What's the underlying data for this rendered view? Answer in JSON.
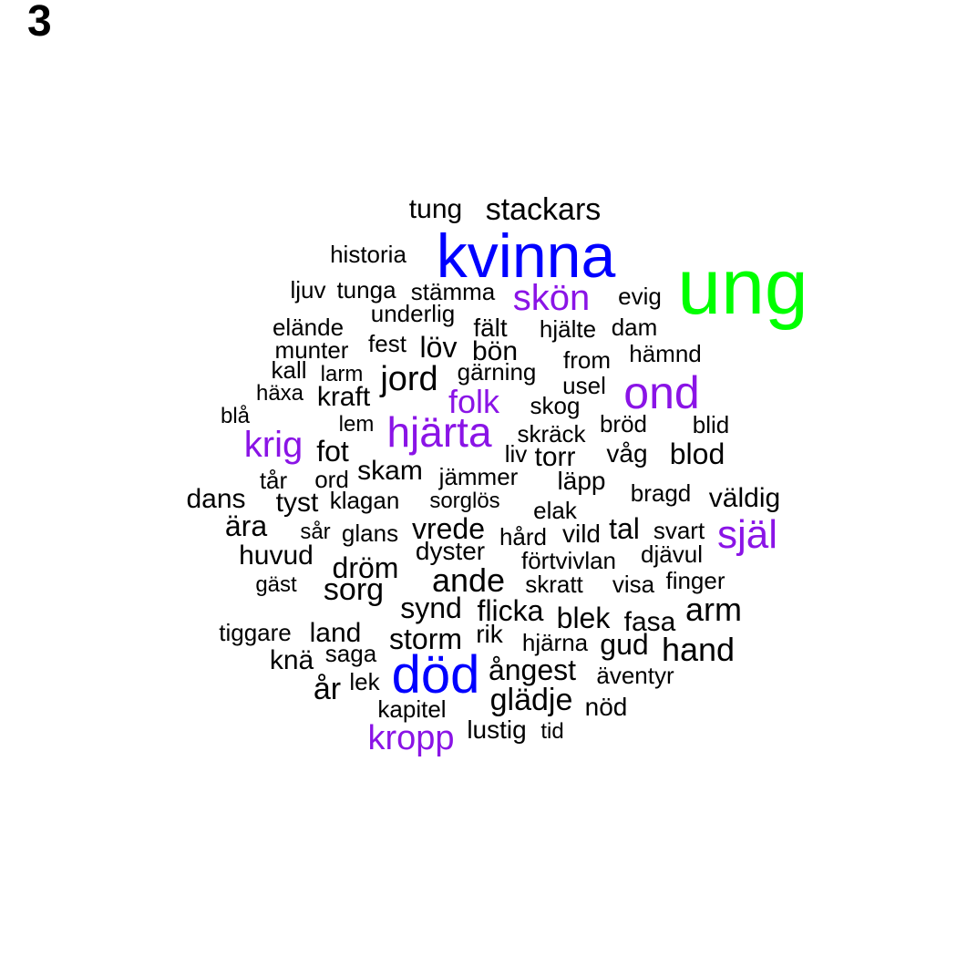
{
  "panel_label": "3",
  "colors": {
    "default": "#000000",
    "green": "#00ff00",
    "blue": "#0000ff",
    "purple": "#8a14e6"
  },
  "words": [
    {
      "text": "ung",
      "color": "green"
    },
    {
      "text": "kvinna",
      "color": "blue"
    },
    {
      "text": "död",
      "color": "blue"
    },
    {
      "text": "skön",
      "color": "purple"
    },
    {
      "text": "ond",
      "color": "purple"
    },
    {
      "text": "folk",
      "color": "purple"
    },
    {
      "text": "hjärta",
      "color": "purple"
    },
    {
      "text": "krig",
      "color": "purple"
    },
    {
      "text": "själ",
      "color": "purple"
    },
    {
      "text": "kropp",
      "color": "purple"
    },
    {
      "text": "tung",
      "color": "default"
    },
    {
      "text": "stackars",
      "color": "default"
    },
    {
      "text": "historia",
      "color": "default"
    },
    {
      "text": "ljuv",
      "color": "default"
    },
    {
      "text": "tunga",
      "color": "default"
    },
    {
      "text": "stämma",
      "color": "default"
    },
    {
      "text": "evig",
      "color": "default"
    },
    {
      "text": "underlig",
      "color": "default"
    },
    {
      "text": "elände",
      "color": "default"
    },
    {
      "text": "fält",
      "color": "default"
    },
    {
      "text": "hjälte",
      "color": "default"
    },
    {
      "text": "dam",
      "color": "default"
    },
    {
      "text": "munter",
      "color": "default"
    },
    {
      "text": "fest",
      "color": "default"
    },
    {
      "text": "löv",
      "color": "default"
    },
    {
      "text": "bön",
      "color": "default"
    },
    {
      "text": "hämnd",
      "color": "default"
    },
    {
      "text": "from",
      "color": "default"
    },
    {
      "text": "kall",
      "color": "default"
    },
    {
      "text": "larm",
      "color": "default"
    },
    {
      "text": "jord",
      "color": "default"
    },
    {
      "text": "gärning",
      "color": "default"
    },
    {
      "text": "usel",
      "color": "default"
    },
    {
      "text": "häxa",
      "color": "default"
    },
    {
      "text": "kraft",
      "color": "default"
    },
    {
      "text": "skog",
      "color": "default"
    },
    {
      "text": "blå",
      "color": "default"
    },
    {
      "text": "lem",
      "color": "default"
    },
    {
      "text": "skräck",
      "color": "default"
    },
    {
      "text": "bröd",
      "color": "default"
    },
    {
      "text": "blid",
      "color": "default"
    },
    {
      "text": "fot",
      "color": "default"
    },
    {
      "text": "liv",
      "color": "default"
    },
    {
      "text": "torr",
      "color": "default"
    },
    {
      "text": "våg",
      "color": "default"
    },
    {
      "text": "blod",
      "color": "default"
    },
    {
      "text": "tår",
      "color": "default"
    },
    {
      "text": "ord",
      "color": "default"
    },
    {
      "text": "skam",
      "color": "default"
    },
    {
      "text": "jämmer",
      "color": "default"
    },
    {
      "text": "läpp",
      "color": "default"
    },
    {
      "text": "bragd",
      "color": "default"
    },
    {
      "text": "väldig",
      "color": "default"
    },
    {
      "text": "dans",
      "color": "default"
    },
    {
      "text": "tyst",
      "color": "default"
    },
    {
      "text": "klagan",
      "color": "default"
    },
    {
      "text": "sorglös",
      "color": "default"
    },
    {
      "text": "elak",
      "color": "default"
    },
    {
      "text": "ära",
      "color": "default"
    },
    {
      "text": "sår",
      "color": "default"
    },
    {
      "text": "glans",
      "color": "default"
    },
    {
      "text": "vrede",
      "color": "default"
    },
    {
      "text": "hård",
      "color": "default"
    },
    {
      "text": "vild",
      "color": "default"
    },
    {
      "text": "tal",
      "color": "default"
    },
    {
      "text": "svart",
      "color": "default"
    },
    {
      "text": "huvud",
      "color": "default"
    },
    {
      "text": "dyster",
      "color": "default"
    },
    {
      "text": "förtvivlan",
      "color": "default"
    },
    {
      "text": "djävul",
      "color": "default"
    },
    {
      "text": "dröm",
      "color": "default"
    },
    {
      "text": "gäst",
      "color": "default"
    },
    {
      "text": "sorg",
      "color": "default"
    },
    {
      "text": "ande",
      "color": "default"
    },
    {
      "text": "skratt",
      "color": "default"
    },
    {
      "text": "visa",
      "color": "default"
    },
    {
      "text": "finger",
      "color": "default"
    },
    {
      "text": "synd",
      "color": "default"
    },
    {
      "text": "flicka",
      "color": "default"
    },
    {
      "text": "blek",
      "color": "default"
    },
    {
      "text": "arm",
      "color": "default"
    },
    {
      "text": "fasa",
      "color": "default"
    },
    {
      "text": "tiggare",
      "color": "default"
    },
    {
      "text": "land",
      "color": "default"
    },
    {
      "text": "storm",
      "color": "default"
    },
    {
      "text": "rik",
      "color": "default"
    },
    {
      "text": "hjärna",
      "color": "default"
    },
    {
      "text": "gud",
      "color": "default"
    },
    {
      "text": "hand",
      "color": "default"
    },
    {
      "text": "knä",
      "color": "default"
    },
    {
      "text": "saga",
      "color": "default"
    },
    {
      "text": "ångest",
      "color": "default"
    },
    {
      "text": "äventyr",
      "color": "default"
    },
    {
      "text": "år",
      "color": "default"
    },
    {
      "text": "lek",
      "color": "default"
    },
    {
      "text": "glädje",
      "color": "default"
    },
    {
      "text": "kapitel",
      "color": "default"
    },
    {
      "text": "nöd",
      "color": "default"
    },
    {
      "text": "lustig",
      "color": "default"
    },
    {
      "text": "tid",
      "color": "default"
    }
  ]
}
